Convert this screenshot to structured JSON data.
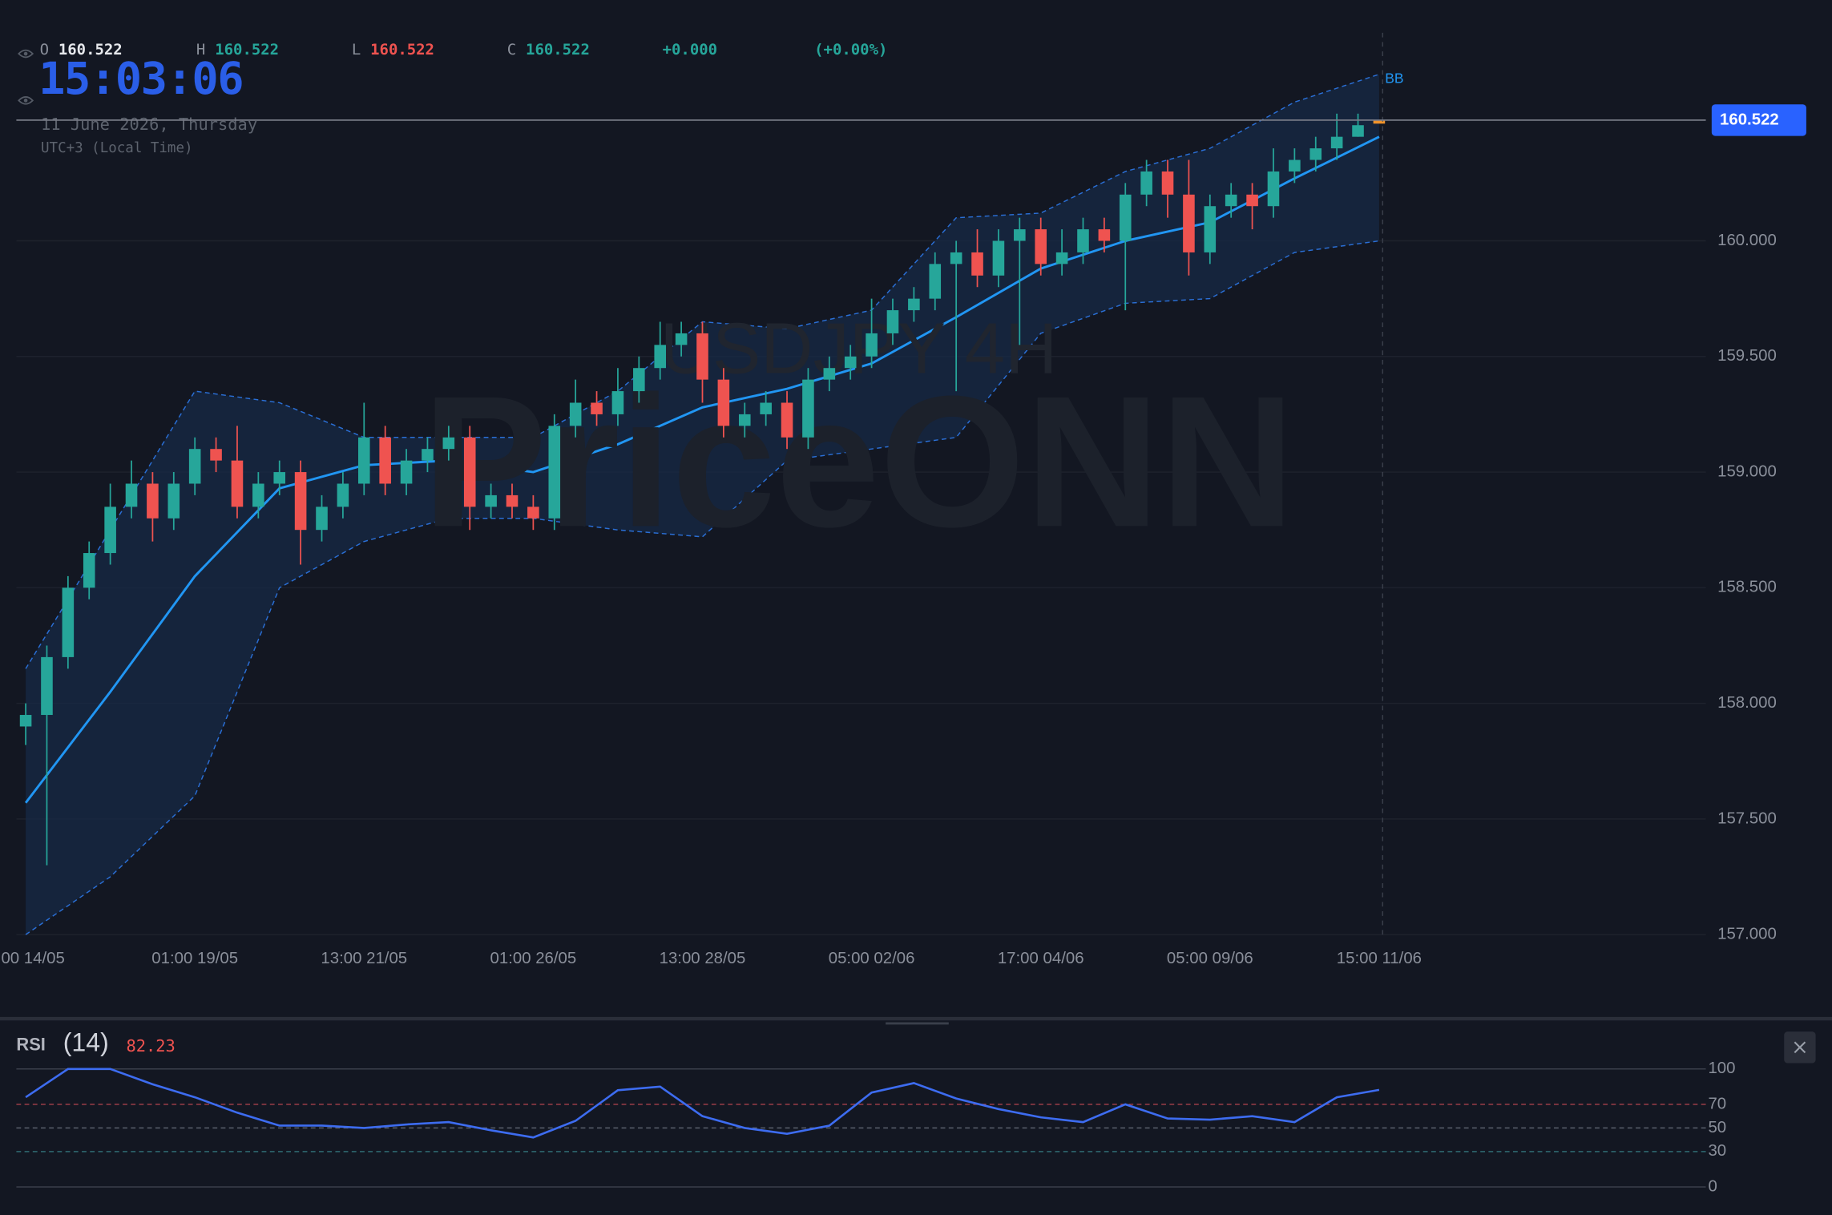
{
  "header": {
    "items": [
      {
        "label": "O",
        "value": 160.522,
        "color": "#e6e8ec"
      },
      {
        "label": "H",
        "value": 160.522,
        "color": "#26a69a"
      },
      {
        "label": "L",
        "value": 160.522,
        "color": "#ef5350"
      },
      {
        "label": "C",
        "value": 160.522,
        "color": "#26a69a"
      }
    ],
    "change": {
      "value": 0,
      "label": "+0.000"
    },
    "change_pct": {
      "value": 0,
      "label": "(+0.00%)"
    },
    "clock": "15:03:06",
    "date": "11 June 2026, Thursday",
    "timezone": "UTC+3 (Local Time)"
  },
  "watermark": {
    "symbol": "USDJPY 4H",
    "brand": "PriceONN"
  },
  "chart_data": [
    {
      "type": "candlestick",
      "categories": [
        "00 14/05",
        null,
        null,
        null,
        null,
        null,
        null,
        null,
        "01:00 19/05",
        null,
        null,
        null,
        null,
        null,
        null,
        null,
        "13:00 21/05",
        null,
        null,
        null,
        null,
        null,
        null,
        null,
        "01:00 26/05",
        null,
        null,
        null,
        null,
        null,
        null,
        null,
        "13:00 28/05",
        null,
        null,
        null,
        null,
        null,
        null,
        null,
        "05:00 02/06",
        null,
        null,
        null,
        null,
        null,
        null,
        null,
        "17:00 04/06",
        null,
        null,
        null,
        null,
        null,
        null,
        null,
        "05:00 09/06",
        null,
        null,
        null,
        null,
        null,
        null,
        null,
        "15:00 11/06"
      ],
      "open": [
        157.9,
        157.95,
        158.2,
        158.5,
        158.65,
        158.85,
        158.95,
        158.8,
        158.95,
        159.1,
        159.05,
        158.85,
        158.95,
        159.0,
        158.75,
        158.85,
        158.95,
        159.15,
        158.95,
        159.05,
        159.1,
        159.15,
        158.85,
        158.9,
        158.85,
        158.8,
        159.2,
        159.3,
        159.25,
        159.35,
        159.45,
        159.55,
        159.6,
        159.4,
        159.2,
        159.25,
        159.3,
        159.15,
        159.4,
        159.45,
        159.5,
        159.6,
        159.7,
        159.75,
        159.9,
        159.95,
        159.85,
        160.0,
        160.05,
        159.9,
        159.95,
        160.05,
        160.0,
        160.2,
        160.3,
        160.2,
        159.95,
        160.15,
        160.2,
        160.15,
        160.3,
        160.35,
        160.4,
        160.45,
        160.522
      ],
      "high": [
        158.0,
        158.25,
        158.55,
        158.7,
        158.95,
        159.05,
        159.0,
        159.0,
        159.15,
        159.15,
        159.2,
        159.0,
        159.05,
        159.05,
        158.9,
        159.0,
        159.3,
        159.2,
        159.1,
        159.15,
        159.2,
        159.2,
        158.95,
        158.95,
        158.9,
        159.25,
        159.4,
        159.35,
        159.45,
        159.5,
        159.65,
        159.65,
        159.65,
        159.45,
        159.3,
        159.35,
        159.35,
        159.45,
        159.5,
        159.55,
        159.75,
        159.75,
        159.8,
        159.95,
        160.0,
        160.05,
        160.05,
        160.1,
        160.1,
        160.05,
        160.1,
        160.1,
        160.25,
        160.35,
        160.35,
        160.35,
        160.2,
        160.25,
        160.25,
        160.4,
        160.4,
        160.45,
        160.55,
        160.55,
        160.522
      ],
      "low": [
        157.82,
        157.3,
        158.15,
        158.45,
        158.6,
        158.8,
        158.7,
        158.75,
        158.9,
        159.0,
        158.8,
        158.8,
        158.9,
        158.6,
        158.7,
        158.8,
        158.9,
        158.9,
        158.9,
        159.0,
        159.05,
        158.75,
        158.8,
        158.8,
        158.75,
        158.75,
        159.15,
        159.2,
        159.2,
        159.3,
        159.4,
        159.5,
        159.3,
        159.15,
        159.15,
        159.2,
        159.1,
        159.1,
        159.35,
        159.4,
        159.45,
        159.55,
        159.65,
        159.7,
        159.35,
        159.8,
        159.8,
        159.55,
        159.85,
        159.85,
        159.9,
        159.95,
        159.7,
        160.15,
        160.1,
        159.85,
        159.9,
        160.1,
        160.05,
        160.1,
        160.25,
        160.3,
        160.35,
        160.45,
        160.522
      ],
      "close": [
        157.95,
        158.2,
        158.5,
        158.65,
        158.85,
        158.95,
        158.8,
        158.95,
        159.1,
        159.05,
        158.85,
        158.95,
        159.0,
        158.75,
        158.85,
        158.95,
        159.15,
        158.95,
        159.05,
        159.1,
        159.15,
        158.85,
        158.9,
        158.85,
        158.8,
        159.2,
        159.3,
        159.25,
        159.35,
        159.45,
        159.55,
        159.6,
        159.4,
        159.2,
        159.25,
        159.3,
        159.15,
        159.4,
        159.45,
        159.5,
        159.6,
        159.7,
        159.75,
        159.9,
        159.95,
        159.85,
        160.0,
        160.05,
        159.9,
        159.95,
        160.05,
        160.0,
        160.2,
        160.3,
        160.2,
        159.95,
        160.15,
        160.2,
        160.15,
        160.3,
        160.35,
        160.4,
        160.45,
        160.5,
        160.522
      ],
      "up_color": "#26a69a",
      "down_color": "#ef5350",
      "doji_color": "#f0932b",
      "ylim": [
        157,
        160.9
      ],
      "yticks": [
        {
          "value": 157,
          "label": "157.000"
        },
        {
          "value": 157.5,
          "label": "157.500"
        },
        {
          "value": 158,
          "label": "158.000"
        },
        {
          "value": 158.5,
          "label": "158.500"
        },
        {
          "value": 159,
          "label": "159.000"
        },
        {
          "value": 159.5,
          "label": "159.500"
        },
        {
          "value": 160,
          "label": "160.000"
        }
      ],
      "grid": true,
      "bands": {
        "name": "BB",
        "x": [
          0,
          4,
          8,
          12,
          16,
          20,
          24,
          28,
          32,
          36,
          40,
          44,
          48,
          52,
          56,
          60,
          64
        ],
        "upper": [
          158.15,
          158.75,
          159.35,
          159.3,
          159.15,
          159.15,
          159.15,
          159.35,
          159.65,
          159.62,
          159.7,
          160.1,
          160.12,
          160.3,
          160.4,
          160.6,
          160.72
        ],
        "middle": [
          157.57,
          158.05,
          158.55,
          158.93,
          159.03,
          159.05,
          159.0,
          159.12,
          159.28,
          159.36,
          159.47,
          159.67,
          159.88,
          160.0,
          160.08,
          160.27,
          160.45
        ],
        "lower": [
          157.0,
          157.25,
          157.6,
          158.5,
          158.7,
          158.8,
          158.8,
          158.75,
          158.72,
          159.05,
          159.1,
          159.15,
          159.6,
          159.73,
          159.75,
          159.95,
          160.0
        ],
        "color": "#2196f3",
        "edge_color": "#2a6fd6",
        "fill": "#172a45"
      },
      "last_price": {
        "value": 160.522,
        "label": "160.522"
      }
    },
    {
      "type": "line",
      "title": "RSI",
      "period": "(14)",
      "x": [
        0,
        2,
        4,
        6,
        8,
        10,
        12,
        14,
        16,
        18,
        20,
        22,
        24,
        26,
        28,
        30,
        32,
        34,
        36,
        38,
        40,
        42,
        44,
        46,
        48,
        50,
        52,
        54,
        56,
        58,
        60,
        62,
        64
      ],
      "values": [
        76,
        100,
        100,
        87,
        76,
        63,
        52,
        52,
        50,
        53,
        55,
        48,
        42,
        56,
        82,
        85,
        60,
        50,
        45,
        52,
        80,
        88,
        75,
        66,
        59,
        55,
        70,
        58,
        57,
        60,
        55,
        76,
        82.23
      ],
      "color": "#3d6cf0",
      "value_color": "#ef5350",
      "ylim": [
        0,
        100
      ],
      "yticks": [
        0,
        30,
        50,
        70,
        100
      ],
      "tick_colors": [
        "#3a3f4b",
        "#2f6b72",
        "#59606c",
        "#a8414b",
        "#3a3f4b"
      ],
      "tick_dash": [
        false,
        true,
        true,
        true,
        false
      ]
    }
  ]
}
